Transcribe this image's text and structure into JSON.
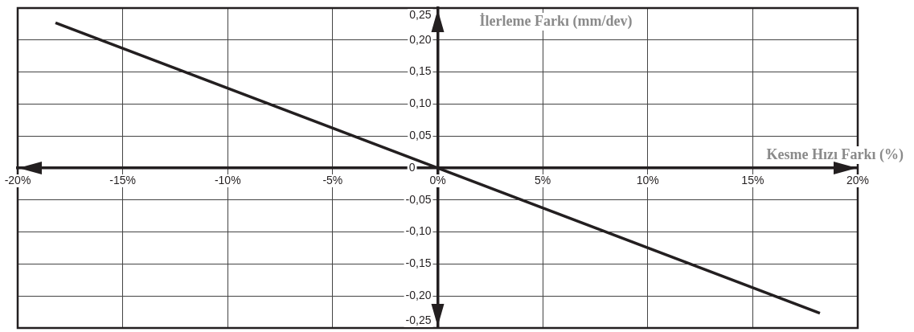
{
  "chart_data": {
    "type": "line",
    "xlabel": "Kesme Hızı Farkı (%)",
    "ylabel": "İlerleme Farkı (mm/dev)",
    "x": [
      -18.2,
      18.2
    ],
    "series": [
      {
        "color": "#231f20",
        "values": [
          0.227,
          -0.227
        ]
      }
    ],
    "xlim": [
      -20,
      20
    ],
    "xticks": [
      {
        "value": -20,
        "label": "-20%"
      },
      {
        "value": -15,
        "label": "-15%"
      },
      {
        "value": -10,
        "label": "-10%"
      },
      {
        "value": -5,
        "label": "-5%"
      },
      {
        "value": 0,
        "label": "0%"
      },
      {
        "value": 5,
        "label": "5%"
      },
      {
        "value": 10,
        "label": "10%"
      },
      {
        "value": 15,
        "label": "15%"
      },
      {
        "value": 20,
        "label": "20%"
      }
    ],
    "ylim": [
      -0.25,
      0.25
    ],
    "yticks": [
      {
        "value": -0.25,
        "label": "-0,25"
      },
      {
        "value": -0.2,
        "label": "-0,20"
      },
      {
        "value": -0.15,
        "label": "-0,15"
      },
      {
        "value": -0.1,
        "label": "-0,10"
      },
      {
        "value": -0.05,
        "label": "-0,05"
      },
      {
        "value": 0,
        "label": "0"
      },
      {
        "value": 0.05,
        "label": "0,05"
      },
      {
        "value": 0.1,
        "label": "0,10"
      },
      {
        "value": 0.15,
        "label": "0,15"
      },
      {
        "value": 0.2,
        "label": "0,20"
      },
      {
        "value": 0.25,
        "label": "0,25"
      }
    ],
    "grid": true,
    "marker": "none",
    "line_style": "solid",
    "legend": false
  }
}
